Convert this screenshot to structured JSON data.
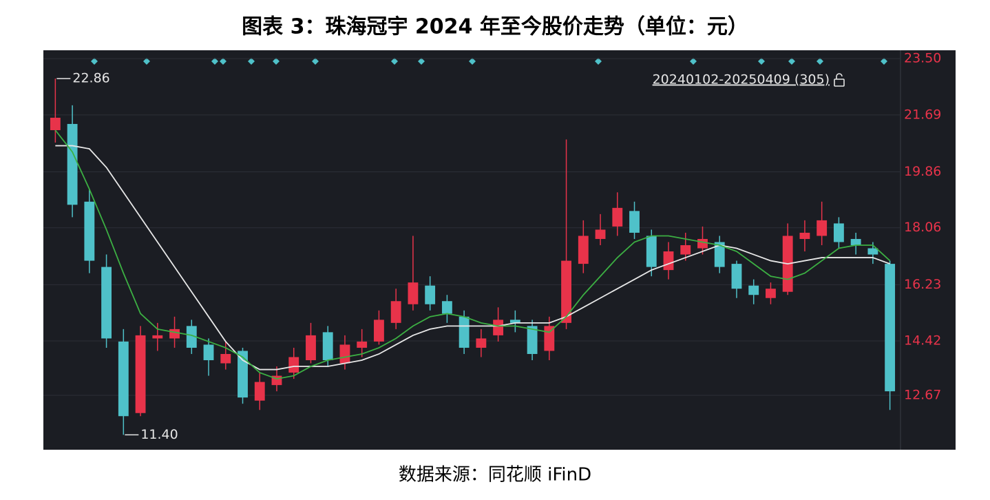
{
  "chart_data": {
    "type": "candlestick",
    "title": "图表 3：珠海冠宇 2024 年至今股价走势（单位：元）",
    "source": "数据来源：同花顺 iFinD",
    "range_label": "20240102-20250409 (305)",
    "open": [
      21.2,
      21.4,
      18.9,
      16.8,
      14.4,
      12.1,
      14.5,
      14.5,
      14.9,
      14.3,
      13.7,
      14.1,
      12.5,
      13.0,
      13.4,
      13.8,
      14.7,
      13.7,
      14.2,
      14.4,
      15.0,
      15.6,
      16.2,
      15.7,
      15.2,
      14.2,
      14.6,
      15.1,
      14.9,
      14.1,
      15.0,
      16.9,
      17.7,
      18.1,
      18.6,
      17.8,
      16.7,
      17.2,
      17.4,
      17.6,
      16.9,
      16.2,
      15.8,
      16.0,
      17.7,
      17.8,
      18.2,
      17.7,
      17.4,
      16.9
    ],
    "high": [
      22.86,
      22.0,
      19.3,
      17.2,
      14.8,
      14.9,
      15.0,
      15.2,
      15.1,
      14.5,
      14.4,
      14.2,
      13.4,
      13.6,
      14.2,
      15.0,
      14.9,
      14.6,
      14.8,
      15.4,
      16.1,
      17.8,
      16.5,
      15.9,
      15.4,
      14.8,
      15.5,
      15.4,
      15.1,
      15.2,
      20.9,
      18.3,
      18.5,
      19.2,
      18.9,
      18.0,
      17.6,
      17.9,
      18.1,
      17.8,
      17.0,
      16.4,
      16.3,
      18.2,
      18.3,
      18.9,
      18.4,
      17.9,
      17.6,
      17.0
    ],
    "low": [
      20.8,
      18.4,
      16.6,
      14.2,
      11.4,
      12.0,
      14.1,
      14.2,
      14.0,
      13.3,
      13.5,
      12.4,
      12.2,
      12.8,
      13.2,
      13.7,
      13.6,
      13.5,
      13.9,
      14.3,
      14.8,
      15.4,
      15.4,
      15.0,
      14.0,
      13.9,
      14.4,
      14.7,
      13.8,
      13.8,
      14.8,
      16.6,
      17.5,
      17.8,
      17.7,
      16.5,
      16.4,
      17.0,
      17.2,
      16.6,
      15.8,
      15.6,
      15.6,
      15.9,
      17.3,
      17.5,
      17.4,
      17.2,
      16.9,
      12.2
    ],
    "close": [
      21.6,
      18.8,
      17.0,
      14.5,
      12.0,
      14.6,
      14.6,
      14.8,
      14.2,
      13.8,
      14.0,
      12.6,
      13.1,
      13.3,
      13.9,
      14.6,
      13.8,
      14.3,
      14.4,
      15.1,
      15.7,
      16.3,
      15.6,
      15.3,
      14.2,
      14.5,
      15.1,
      15.0,
      14.0,
      14.9,
      17.0,
      17.8,
      18.0,
      18.7,
      17.9,
      16.8,
      17.3,
      17.5,
      17.7,
      16.8,
      16.1,
      15.9,
      16.1,
      17.8,
      17.9,
      18.3,
      17.6,
      17.5,
      17.2,
      12.8
    ],
    "up_color": "#e8334a",
    "down_color": "#4fc1c9",
    "series": [
      {
        "color": "#e8e8e8",
        "values": [
          20.7,
          20.7,
          20.6,
          20.0,
          19.2,
          18.4,
          17.6,
          16.8,
          16.0,
          15.2,
          14.4,
          13.8,
          13.5,
          13.5,
          13.6,
          13.6,
          13.6,
          13.7,
          13.8,
          14.0,
          14.3,
          14.6,
          14.8,
          14.9,
          14.9,
          14.9,
          14.9,
          15.0,
          15.0,
          15.0,
          15.2,
          15.5,
          15.8,
          16.1,
          16.4,
          16.7,
          16.9,
          17.1,
          17.3,
          17.5,
          17.4,
          17.2,
          17.0,
          16.9,
          17.0,
          17.1,
          17.1,
          17.1,
          17.1,
          16.9
        ]
      },
      {
        "color": "#3cb043",
        "values": [
          21.2,
          20.5,
          19.3,
          18.0,
          16.6,
          15.3,
          14.8,
          14.7,
          14.6,
          14.4,
          14.2,
          13.9,
          13.4,
          13.2,
          13.3,
          13.6,
          13.8,
          13.9,
          14.0,
          14.2,
          14.5,
          14.9,
          15.2,
          15.3,
          15.2,
          15.0,
          14.9,
          14.9,
          14.8,
          14.7,
          15.2,
          15.9,
          16.5,
          17.1,
          17.6,
          17.8,
          17.8,
          17.7,
          17.6,
          17.5,
          17.3,
          16.9,
          16.5,
          16.4,
          16.6,
          17.0,
          17.4,
          17.5,
          17.5,
          17.0
        ]
      }
    ],
    "annotations": [
      {
        "value": 22.86,
        "label": "22.86"
      },
      {
        "value": 11.4,
        "label": "11.40"
      }
    ],
    "ylim": [
      10.92,
      23.77
    ],
    "yticks": [
      {
        "value": 23.5,
        "label": "23.50"
      },
      21.69,
      19.86,
      18.06,
      16.23,
      14.42,
      12.67
    ],
    "grid": true
  }
}
